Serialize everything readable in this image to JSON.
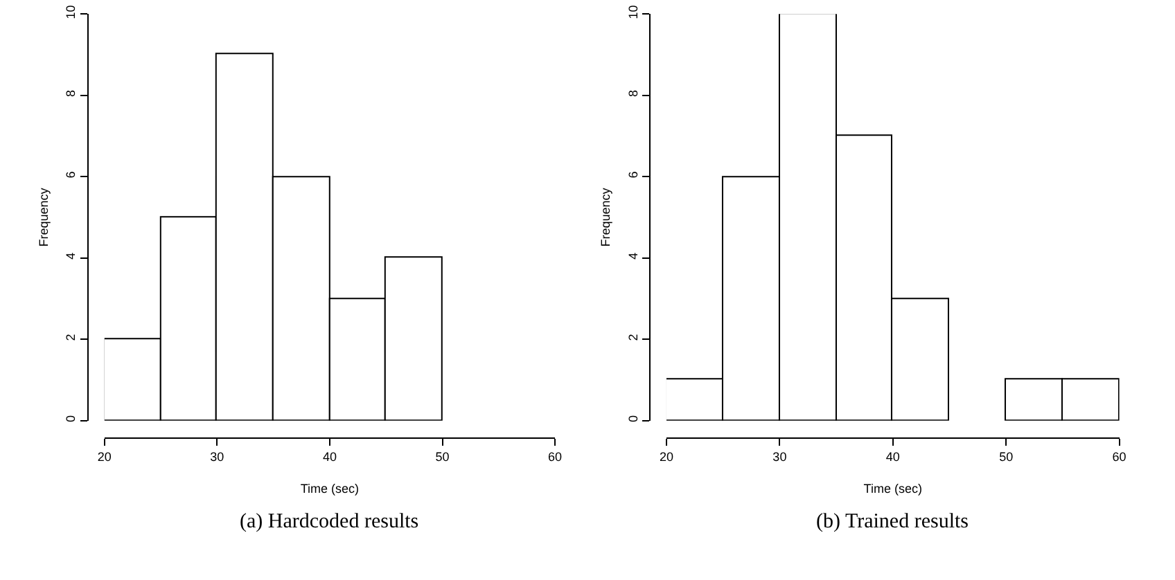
{
  "chart_data": [
    {
      "type": "histogram",
      "bins": [
        20,
        25,
        30,
        35,
        40,
        45,
        50
      ],
      "values": [
        2,
        5,
        9,
        6,
        3,
        4
      ],
      "color": "#ffffff",
      "xlabel": "Time (sec)",
      "ylabel": "Frequency",
      "xlim": [
        20,
        60
      ],
      "xticks": [
        20,
        30,
        40,
        50,
        60
      ],
      "ylim": [
        0,
        10
      ],
      "yticks": [
        0,
        2,
        4,
        6,
        8,
        10
      ],
      "annotations": [
        "(a) Hardcoded results"
      ]
    },
    {
      "type": "histogram",
      "bins": [
        20,
        25,
        30,
        35,
        40,
        45,
        50,
        55,
        60
      ],
      "values": [
        1,
        6,
        10,
        7,
        3,
        0,
        1,
        1
      ],
      "color": "#ffffff",
      "xlabel": "Time (sec)",
      "ylabel": "Frequency",
      "xlim": [
        20,
        60
      ],
      "xticks": [
        20,
        30,
        40,
        50,
        60
      ],
      "ylim": [
        0,
        10
      ],
      "yticks": [
        0,
        2,
        4,
        6,
        8,
        10
      ],
      "annotations": [
        "(b) Trained results"
      ]
    }
  ]
}
